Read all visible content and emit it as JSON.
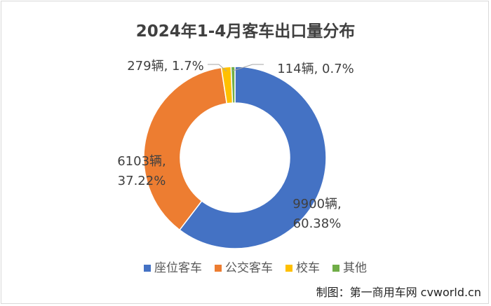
{
  "chart_data": {
    "type": "pie",
    "title": "2024年1-4月客车出口量分布",
    "donut": true,
    "legend_position": "bottom",
    "slices": [
      {
        "name": "座位客车",
        "value": 9900,
        "unit": "辆",
        "percent": "60.38%",
        "label_line1": "9900辆,",
        "label_line2": "60.38%",
        "color": "#4472c4"
      },
      {
        "name": "公交客车",
        "value": 6103,
        "unit": "辆",
        "percent": "37.22%",
        "label_line1": "6103辆,",
        "label_line2": "37.22%",
        "color": "#ed7d31"
      },
      {
        "name": "校车",
        "value": 279,
        "unit": "辆",
        "percent": "1.7%",
        "label_line1": "279辆, 1.7%",
        "label_line2": "",
        "color": "#ffc000"
      },
      {
        "name": "其他",
        "value": 114,
        "unit": "辆",
        "percent": "0.7%",
        "label_line1": "114辆, 0.7%",
        "label_line2": "",
        "color": "#70ad47"
      }
    ]
  },
  "footer": {
    "credit": "制图：第一商用车网 cvworld.cn"
  }
}
